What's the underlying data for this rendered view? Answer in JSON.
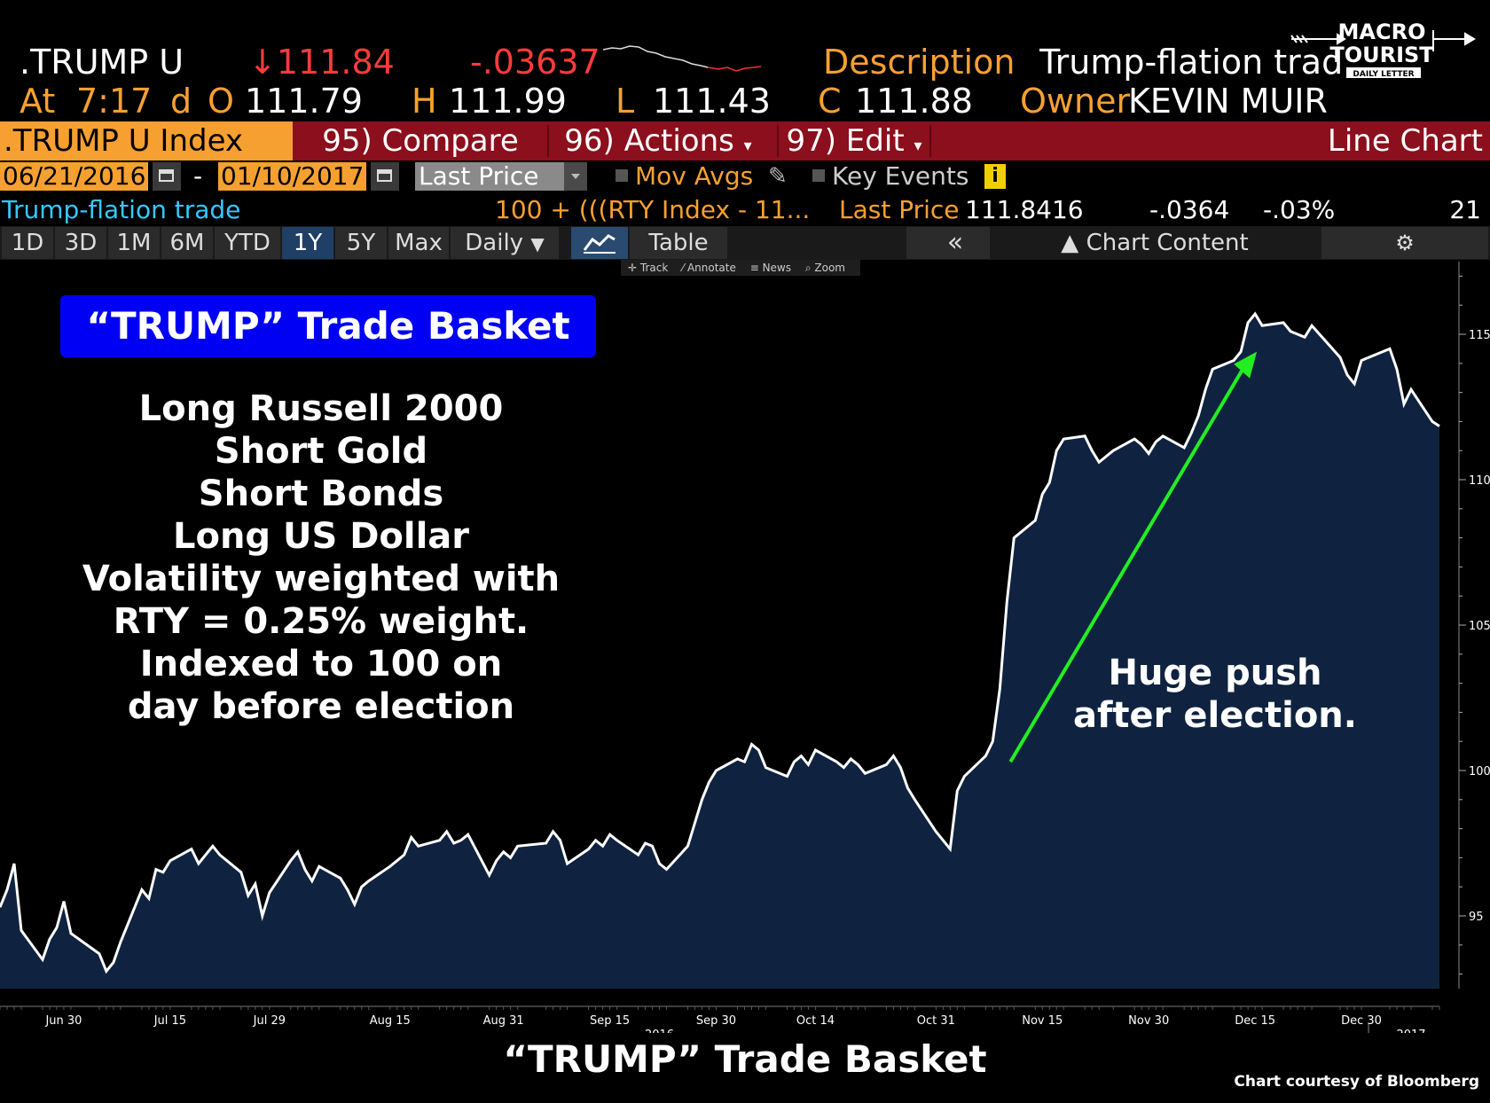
{
  "quote": {
    "ticker": ".TRUMP U",
    "last": "↓111.84",
    "change": "-.03637",
    "description_label": "Description",
    "description_value": "Trump-flation trade",
    "at_label": "At",
    "time": "7:17",
    "d_label": "d",
    "open_label": "O",
    "open": "111.79",
    "high_label": "H",
    "high": "111.99",
    "low_label": "L",
    "low": "111.43",
    "close_label": "C",
    "close": "111.88",
    "owner_label": "Owner",
    "owner": "KEVIN MUIR"
  },
  "logo": {
    "line1": "MACRO",
    "line2": "TOURIST",
    "line3": "DAILY LETTER"
  },
  "menubar": {
    "title": ".TRUMP U Index",
    "compare": "95) Compare",
    "actions": "96) Actions",
    "edit": "97) Edit",
    "chart_type": "Line Chart"
  },
  "controls": {
    "start_date": "06/21/2016",
    "dash": "-",
    "end_date": "01/10/2017",
    "field": "Last Price",
    "mov_avgs": "Mov Avgs",
    "key_events": "Key Events",
    "info_icon": "i"
  },
  "legend_row": {
    "name": "Trump-flation trade",
    "formula": "100 + (((RTY Index - 11...",
    "price_label": "Last Price",
    "price": "111.8416",
    "net_change": "-.0364",
    "pct_change": "-.03%",
    "count": "21"
  },
  "tabs": [
    "1D",
    "3D",
    "1M",
    "6M",
    "YTD",
    "1Y",
    "5Y",
    "Max"
  ],
  "active_tab": "1Y",
  "period_select": "Daily",
  "table_tab": "Table",
  "collapse_icon": "«",
  "chart_content": "Chart Content",
  "mini_toolbar": [
    "Track",
    "Annotate",
    "News",
    "Zoom"
  ],
  "annotations": {
    "box_title": "“TRUMP” Trade Basket",
    "notes": [
      "Long Russell 2000",
      "Short Gold",
      "Short Bonds",
      "Long US Dollar",
      "Volatility weighted with",
      "RTY = 0.25% weight.",
      "Indexed to 100 on",
      "day before election"
    ],
    "push_line1": "Huge push",
    "push_line2": "after election.",
    "arrow_color": "#22ee22"
  },
  "footer": {
    "title": "“TRUMP” Trade Basket",
    "credit": "Chart courtesy of Bloomberg"
  },
  "colors": {
    "amber": "#f7a032",
    "red_bar": "#8b0f1c",
    "area_fill": "#0f2340",
    "line": "#ffffff",
    "highlight_blue": "#0000f5"
  },
  "chart_data": {
    "type": "area",
    "title": "",
    "xlabel": "",
    "ylabel": "",
    "ylim": [
      92.5,
      117.5
    ],
    "yticks": [
      95,
      100,
      105,
      110,
      115
    ],
    "x_ticks": [
      "Jun 30",
      "Jul 15",
      "Jul 29",
      "Aug 15",
      "Aug 31",
      "Sep 15",
      "Sep 30",
      "Oct 14",
      "Oct 31",
      "Nov 15",
      "Nov 30",
      "Dec 15",
      "Dec 30",
      "2017"
    ],
    "year_label": "2016",
    "x_start": "2016-06-21",
    "x_end": "2017-01-10",
    "series": [
      {
        "x": [
          "2016-06-21",
          "2016-06-22",
          "2016-06-23",
          "2016-06-24",
          "2016-06-27",
          "2016-06-28",
          "2016-06-29",
          "2016-06-30",
          "2016-07-01",
          "2016-07-05",
          "2016-07-06",
          "2016-07-07",
          "2016-07-08",
          "2016-07-11",
          "2016-07-12",
          "2016-07-13",
          "2016-07-14",
          "2016-07-15",
          "2016-07-18",
          "2016-07-19",
          "2016-07-20",
          "2016-07-21",
          "2016-07-22",
          "2016-07-25",
          "2016-07-26",
          "2016-07-27",
          "2016-07-28",
          "2016-07-29",
          "2016-08-01",
          "2016-08-02",
          "2016-08-03",
          "2016-08-04",
          "2016-08-05",
          "2016-08-08",
          "2016-08-09",
          "2016-08-10",
          "2016-08-11",
          "2016-08-12",
          "2016-08-15",
          "2016-08-16",
          "2016-08-17",
          "2016-08-18",
          "2016-08-19",
          "2016-08-22",
          "2016-08-23",
          "2016-08-24",
          "2016-08-25",
          "2016-08-26",
          "2016-08-29",
          "2016-08-30",
          "2016-08-31",
          "2016-09-01",
          "2016-09-02",
          "2016-09-06",
          "2016-09-07",
          "2016-09-08",
          "2016-09-09",
          "2016-09-12",
          "2016-09-13",
          "2016-09-14",
          "2016-09-15",
          "2016-09-16",
          "2016-09-19",
          "2016-09-20",
          "2016-09-21",
          "2016-09-22",
          "2016-09-23",
          "2016-09-26",
          "2016-09-27",
          "2016-09-28",
          "2016-09-29",
          "2016-09-30",
          "2016-10-03",
          "2016-10-04",
          "2016-10-05",
          "2016-10-06",
          "2016-10-07",
          "2016-10-10",
          "2016-10-11",
          "2016-10-12",
          "2016-10-13",
          "2016-10-14",
          "2016-10-17",
          "2016-10-18",
          "2016-10-19",
          "2016-10-20",
          "2016-10-21",
          "2016-10-24",
          "2016-10-25",
          "2016-10-26",
          "2016-10-27",
          "2016-10-28",
          "2016-10-31",
          "2016-11-01",
          "2016-11-02",
          "2016-11-03",
          "2016-11-04",
          "2016-11-07",
          "2016-11-08",
          "2016-11-09",
          "2016-11-10",
          "2016-11-11",
          "2016-11-14",
          "2016-11-15",
          "2016-11-16",
          "2016-11-17",
          "2016-11-18",
          "2016-11-21",
          "2016-11-22",
          "2016-11-23",
          "2016-11-25",
          "2016-11-28",
          "2016-11-29",
          "2016-11-30",
          "2016-12-01",
          "2016-12-02",
          "2016-12-05",
          "2016-12-06",
          "2016-12-07",
          "2016-12-08",
          "2016-12-09",
          "2016-12-12",
          "2016-12-13",
          "2016-12-14",
          "2016-12-15",
          "2016-12-16",
          "2016-12-19",
          "2016-12-20",
          "2016-12-21",
          "2016-12-22",
          "2016-12-23",
          "2016-12-27",
          "2016-12-28",
          "2016-12-29",
          "2016-12-30",
          "2017-01-03",
          "2017-01-04",
          "2017-01-05",
          "2017-01-06",
          "2017-01-09",
          "2017-01-10"
        ],
        "values": [
          95.3,
          95.9,
          96.8,
          94.5,
          93.5,
          94.2,
          94.6,
          95.5,
          94.4,
          93.7,
          93.1,
          93.4,
          94.1,
          95.9,
          95.6,
          96.6,
          96.5,
          96.9,
          97.3,
          96.8,
          97.1,
          97.4,
          97.1,
          96.5,
          95.7,
          96.1,
          95.0,
          95.8,
          96.9,
          97.2,
          96.6,
          96.2,
          96.7,
          96.3,
          95.9,
          95.4,
          96.0,
          96.2,
          96.7,
          96.9,
          97.1,
          97.7,
          97.4,
          97.6,
          97.9,
          97.5,
          97.6,
          97.8,
          96.4,
          96.9,
          97.2,
          97.0,
          97.4,
          97.5,
          97.9,
          97.6,
          96.8,
          97.3,
          97.6,
          97.4,
          97.8,
          97.6,
          97.1,
          97.5,
          97.4,
          96.8,
          96.6,
          97.4,
          98.2,
          99.0,
          99.6,
          100.0,
          100.4,
          100.3,
          100.9,
          100.7,
          100.1,
          99.8,
          100.3,
          100.5,
          100.2,
          100.7,
          100.3,
          100.1,
          100.4,
          100.2,
          99.9,
          100.2,
          100.5,
          100.1,
          99.4,
          99.0,
          97.9,
          97.6,
          97.3,
          99.3,
          99.8,
          100.5,
          101.0,
          102.8,
          105.8,
          108.0,
          108.6,
          109.5,
          109.9,
          111.0,
          111.4,
          111.5,
          111.0,
          110.6,
          111.0,
          111.4,
          111.2,
          110.9,
          111.3,
          111.5,
          111.1,
          111.6,
          112.2,
          113.1,
          113.8,
          114.1,
          114.4,
          115.4,
          115.7,
          115.3,
          115.4,
          115.1,
          115.0,
          114.9,
          115.3,
          114.2,
          113.6,
          113.3,
          114.1,
          114.5,
          113.8,
          112.6,
          113.1,
          112.0,
          111.84
        ]
      }
    ],
    "grid": false,
    "legend": "none"
  }
}
